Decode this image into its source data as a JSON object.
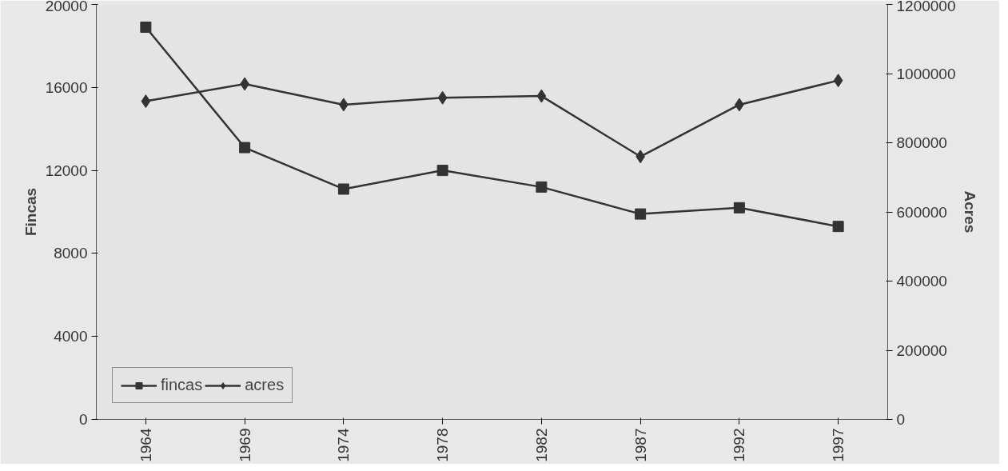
{
  "chart_data": {
    "type": "line",
    "categories": [
      "1964",
      "1969",
      "1974",
      "1978",
      "1982",
      "1987",
      "1992",
      "1997"
    ],
    "ylabel": "Fincas",
    "y2label": "Acres",
    "ylim": [
      0,
      20000
    ],
    "yticks": [
      0,
      4000,
      8000,
      12000,
      16000,
      20000
    ],
    "y2lim": [
      0,
      1200000
    ],
    "y2ticks": [
      0,
      200000,
      400000,
      600000,
      800000,
      1000000,
      1200000
    ],
    "legend": "bottom left",
    "series": [
      {
        "name": "fincas",
        "color": "#333333",
        "marker": "square",
        "values": [
          18900,
          13100,
          11100,
          12000,
          11200,
          9900,
          10200,
          9300
        ]
      },
      {
        "name": "acres",
        "color": "#333333",
        "marker": "diamond",
        "axis": "y2",
        "values": [
          920000,
          970000,
          910000,
          930000,
          935000,
          760000,
          910000,
          980000
        ]
      }
    ]
  }
}
